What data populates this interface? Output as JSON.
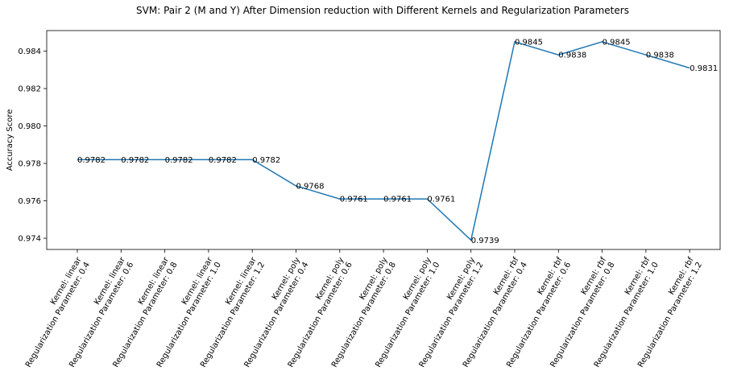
{
  "chart_data": {
    "type": "line",
    "title": "SVM: Pair 2 (M and Y) After Dimension reduction with Different Kernels and Regularization Parameters",
    "xlabel": "",
    "ylabel": "Accuracy Score",
    "ylim": [
      0.9734,
      0.9851
    ],
    "yticks": [
      "0.974",
      "0.976",
      "0.978",
      "0.980",
      "0.982",
      "0.984"
    ],
    "grid": false,
    "line_color": "#1f77b4",
    "categories": [
      [
        "Kernel: linear",
        "Regularization Parameter: 0.4"
      ],
      [
        "Kernel: linear",
        "Regularization Parameter: 0.6"
      ],
      [
        "Kernel: linear",
        "Regularization Parameter: 0.8"
      ],
      [
        "Kernel: linear",
        "Regularization Parameter: 1.0"
      ],
      [
        "Kernel: linear",
        "Regularization Parameter: 1.2"
      ],
      [
        "Kernel: poly",
        "Regularization Parameter: 0.4"
      ],
      [
        "Kernel: poly",
        "Regularization Parameter: 0.6"
      ],
      [
        "Kernel: poly",
        "Regularization Parameter: 0.8"
      ],
      [
        "Kernel: poly",
        "Regularization Parameter: 1.0"
      ],
      [
        "Kernel: poly",
        "Regularization Parameter: 1.2"
      ],
      [
        "Kernel: rbf",
        "Regularization Parameter: 0.4"
      ],
      [
        "Kernel: rbf",
        "Regularization Parameter: 0.6"
      ],
      [
        "Kernel: rbf",
        "Regularization Parameter: 0.8"
      ],
      [
        "Kernel: rbf",
        "Regularization Parameter: 1.0"
      ],
      [
        "Kernel: rbf",
        "Regularization Parameter: 1.2"
      ]
    ],
    "values": [
      0.9782,
      0.9782,
      0.9782,
      0.9782,
      0.9782,
      0.9768,
      0.9761,
      0.9761,
      0.9761,
      0.9739,
      0.9845,
      0.9838,
      0.9845,
      0.9838,
      0.9831
    ],
    "value_labels": [
      "0.9782",
      "0.9782",
      "0.9782",
      "0.9782",
      "0.9782",
      "0.9768",
      "0.9761",
      "0.9761",
      "0.9761",
      "0.9739",
      "0.9845",
      "0.9838",
      "0.9845",
      "0.9838",
      "0.9831"
    ]
  }
}
